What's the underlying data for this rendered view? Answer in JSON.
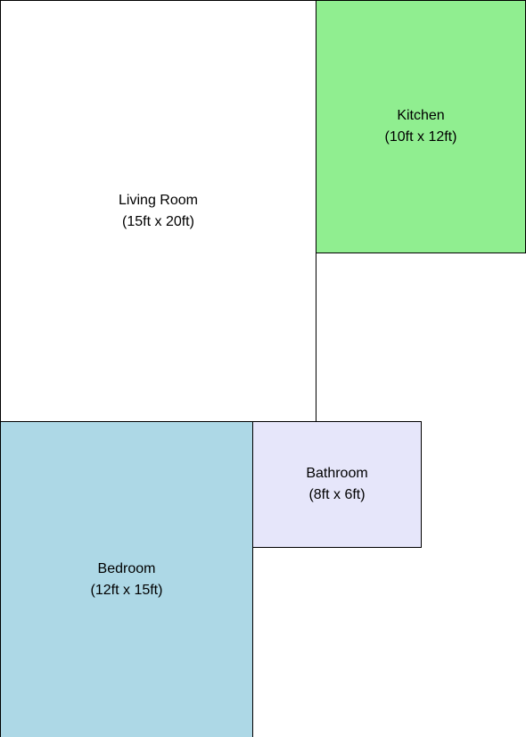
{
  "rooms": {
    "living_room": {
      "name": "Living Room",
      "size": "(15ft x 20ft)",
      "color": "#ffffff"
    },
    "kitchen": {
      "name": "Kitchen",
      "size": "(10ft x 12ft)",
      "color": "#90ee90"
    },
    "bedroom": {
      "name": "Bedroom",
      "size": "(12ft x 15ft)",
      "color": "#add8e6"
    },
    "bathroom": {
      "name": "Bathroom",
      "size": "(8ft x 6ft)",
      "color": "#e6e6fa"
    }
  }
}
